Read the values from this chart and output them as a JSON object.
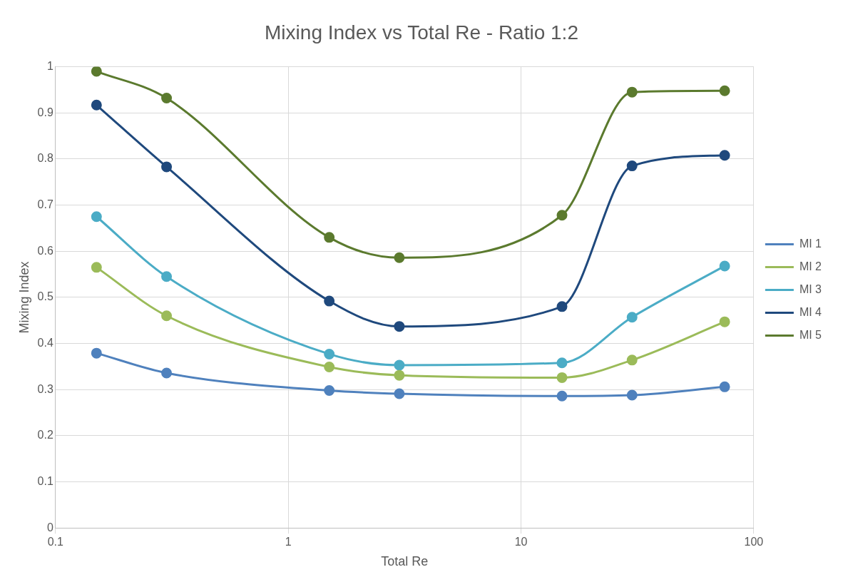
{
  "chart_data": {
    "type": "line",
    "title": "Mixing Index vs Total Re - Ratio 1:2",
    "xlabel": "Total Re",
    "ylabel": "Mixing Index",
    "x": [
      0.15,
      0.3,
      1.5,
      3,
      15,
      30,
      75
    ],
    "series": [
      {
        "name": "MI 1",
        "color": "#4f81bd",
        "values": [
          0.379,
          0.336,
          0.298,
          0.291,
          0.286,
          0.288,
          0.306
        ]
      },
      {
        "name": "MI 2",
        "color": "#9bbb59",
        "values": [
          0.565,
          0.46,
          0.349,
          0.331,
          0.326,
          0.364,
          0.447
        ]
      },
      {
        "name": "MI 3",
        "color": "#4bacc6",
        "values": [
          0.675,
          0.545,
          0.377,
          0.353,
          0.358,
          0.457,
          0.568
        ]
      },
      {
        "name": "MI 4",
        "color": "#1f497d",
        "values": [
          0.917,
          0.783,
          0.492,
          0.437,
          0.48,
          0.785,
          0.808
        ]
      },
      {
        "name": "MI 5",
        "color": "#5b7a2e",
        "values": [
          0.99,
          0.932,
          0.63,
          0.586,
          0.678,
          0.945,
          0.948
        ]
      }
    ],
    "log": "x",
    "xlim": [
      0.1,
      100
    ],
    "xticks": [
      0.1,
      1,
      10,
      100
    ],
    "ylim": [
      0,
      1
    ],
    "yticks": [
      0,
      0.1,
      0.2,
      0.3,
      0.4,
      0.5,
      0.6,
      0.7,
      0.8,
      0.9,
      1
    ],
    "grid": true,
    "legend": "right",
    "marker": "circle",
    "line_style": "solid"
  }
}
